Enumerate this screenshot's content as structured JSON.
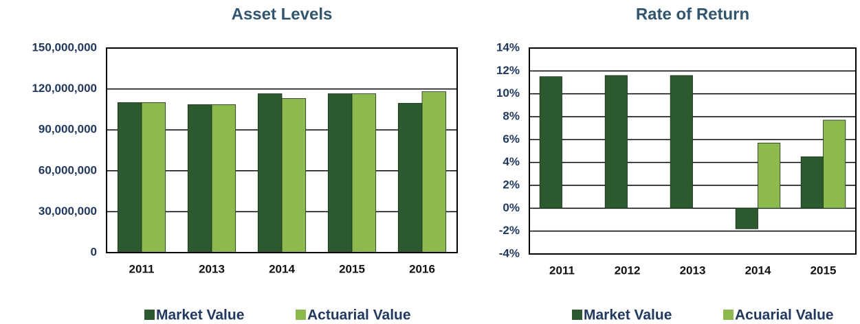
{
  "chart_data": [
    {
      "type": "bar",
      "title": "Asset Levels",
      "categories": [
        "2011",
        "2013",
        "2014",
        "2015",
        "2016"
      ],
      "series": [
        {
          "name": "Market Value",
          "color": "#2b5a2e",
          "values": [
            110000000,
            108500000,
            116500000,
            116500000,
            109500000
          ]
        },
        {
          "name": "Actuarial Value",
          "color": "#8dba4c",
          "values": [
            110000000,
            108500000,
            113000000,
            116500000,
            118000000
          ]
        }
      ],
      "ylim": [
        0,
        150000000
      ],
      "yticks": [
        0,
        {
          "value": 30000000,
          "label": "30,000,000"
        },
        {
          "value": 60000000,
          "label": "60,000,000"
        },
        {
          "value": 90000000,
          "label": "90,000,000"
        },
        {
          "value": 120000000,
          "label": "120,000,000"
        },
        {
          "value": 150000000,
          "label": "150,000,000"
        }
      ],
      "grid": true,
      "legend": "bottom"
    },
    {
      "type": "bar",
      "title": "Rate of Return",
      "categories": [
        "2011",
        "2012",
        "2013",
        "2014",
        "2015"
      ],
      "series": [
        {
          "name": "Market Value",
          "color": "#2b5a2e",
          "values": [
            11.5,
            11.6,
            11.6,
            -1.8,
            4.5
          ]
        },
        {
          "name": "Acuarial Value",
          "color": "#8dba4c",
          "values": [
            null,
            null,
            null,
            5.7,
            7.7
          ]
        }
      ],
      "ylim": [
        -4,
        14
      ],
      "yticks": [
        {
          "value": -4,
          "label": "-4%"
        },
        {
          "value": -2,
          "label": "-2%"
        },
        {
          "value": 0,
          "label": "0%"
        },
        {
          "value": 2,
          "label": "2%"
        },
        {
          "value": 4,
          "label": "4%"
        },
        {
          "value": 6,
          "label": "6%"
        },
        {
          "value": 8,
          "label": "8%"
        },
        {
          "value": 10,
          "label": "10%"
        },
        {
          "value": 12,
          "label": "12%"
        },
        {
          "value": 14,
          "label": "14%"
        }
      ],
      "grid": true,
      "legend": "bottom"
    }
  ]
}
